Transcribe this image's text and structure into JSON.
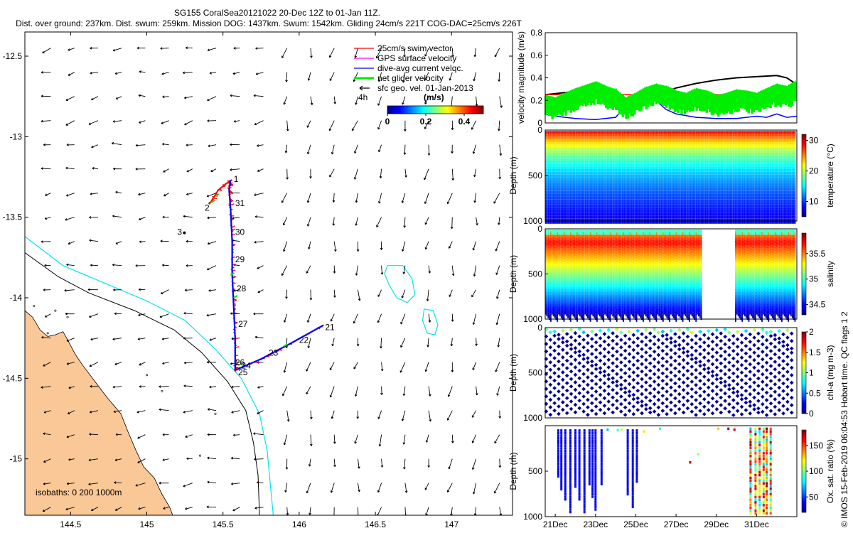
{
  "header": {
    "title": "SG155 CoralSea20121022 20-Dec 12Z to 01-Jan 11Z.",
    "subtitle": "Dist. over ground: 237km. Dist. swum: 259km. Mission DOG: 1437km. Swum: 1542km. Gliding 24cm/s 221T COG-DAC=25cm/s 226T"
  },
  "credit": "© IMOS 15-Feb-2019 06:04:53 Hobart time. QC flags 1  2",
  "colors": {
    "land": "#fac896",
    "isobath200": "#000000",
    "isobath1000": "#00e5ee",
    "swim": "#ff0000",
    "gps": "#ff00ff",
    "dac": "#0000ff",
    "net": "#00ee00",
    "sfc": "#000000"
  },
  "chart_data": [
    {
      "type": "map",
      "xlim": [
        144.2,
        147.4
      ],
      "ylim": [
        -15.35,
        -12.35
      ],
      "x_ticks": [
        144.5,
        145,
        145.5,
        146,
        146.5,
        147
      ],
      "x_tick_labels": [
        "144.5",
        "145",
        "145.5",
        "146",
        "146.5",
        "147"
      ],
      "y_ticks": [
        -12.5,
        -13,
        -13.5,
        -14,
        -14.5,
        -15
      ],
      "y_tick_labels": [
        "-12.5",
        "-13",
        "-13.5",
        "-14",
        "-14.5",
        "-15"
      ],
      "legend": {
        "placement": "top-right",
        "entries": [
          {
            "label": "25cm/s swim vector",
            "color": "#ff0000",
            "marker": "line"
          },
          {
            "label": "GPS surface velocity",
            "color": "#ff00ff",
            "marker": "line"
          },
          {
            "label": "dive-avg current velqc.",
            "color": "#0000ff",
            "marker": "line"
          },
          {
            "label": "net glider velocity",
            "color": "#00ee00",
            "marker": "bold-line"
          },
          {
            "label": "sfc geo. vel. 01-Jan-2013",
            "color": "#000000",
            "marker": "arrow"
          }
        ]
      },
      "colorbar": {
        "label": "(m/s)",
        "ticks": [
          0,
          0.2,
          0.4
        ],
        "tick_labels": [
          "0",
          "0.2",
          "0.4"
        ],
        "range": [
          0,
          0.5
        ],
        "annotation": "4h"
      },
      "isobaths_label": "isobaths: 0   200  1000m",
      "track": {
        "leg1": [
          [
            145.55,
            -13.27
          ],
          [
            145.54,
            -13.33
          ],
          [
            145.55,
            -13.45
          ],
          [
            145.56,
            -13.65
          ],
          [
            145.56,
            -13.85
          ],
          [
            145.57,
            -14.05
          ],
          [
            145.58,
            -14.25
          ],
          [
            145.58,
            -14.42
          ],
          [
            145.58,
            -14.45
          ]
        ],
        "leg2": [
          [
            145.58,
            -14.45
          ],
          [
            145.75,
            -14.38
          ],
          [
            145.95,
            -14.28
          ],
          [
            146.16,
            -14.17
          ]
        ],
        "start_hook": [
          [
            145.55,
            -13.27
          ],
          [
            145.47,
            -13.33
          ],
          [
            145.41,
            -13.42
          ]
        ]
      },
      "day_labels": [
        {
          "text": "1",
          "x": 145.57,
          "y": -13.28
        },
        {
          "text": "2",
          "x": 145.38,
          "y": -13.46
        },
        {
          "text": "3",
          "x": 145.2,
          "y": -13.61
        },
        {
          "text": "31",
          "x": 145.58,
          "y": -13.43
        },
        {
          "text": "30",
          "x": 145.58,
          "y": -13.61
        },
        {
          "text": "29",
          "x": 145.58,
          "y": -13.78
        },
        {
          "text": "28",
          "x": 145.59,
          "y": -13.96
        },
        {
          "text": "27",
          "x": 145.6,
          "y": -14.18
        },
        {
          "text": "26",
          "x": 145.58,
          "y": -14.42
        },
        {
          "text": "24",
          "x": 145.62,
          "y": -14.44
        },
        {
          "text": "25",
          "x": 145.6,
          "y": -14.48
        },
        {
          "text": "23",
          "x": 145.8,
          "y": -14.36
        },
        {
          "text": "22",
          "x": 146.0,
          "y": -14.28
        },
        {
          "text": "21",
          "x": 146.17,
          "y": -14.2
        }
      ],
      "isobath_200": [
        [
          144.2,
          -13.72
        ],
        [
          144.42,
          -13.87
        ],
        [
          144.62,
          -13.97
        ],
        [
          144.92,
          -14.08
        ],
        [
          145.18,
          -14.2
        ],
        [
          145.36,
          -14.34
        ],
        [
          145.53,
          -14.52
        ],
        [
          145.65,
          -14.7
        ],
        [
          145.7,
          -14.9
        ],
        [
          145.73,
          -15.1
        ],
        [
          145.74,
          -15.35
        ]
      ],
      "isobath_1000": [
        [
          144.2,
          -13.62
        ],
        [
          144.45,
          -13.8
        ],
        [
          144.7,
          -13.9
        ],
        [
          145.0,
          -14.02
        ],
        [
          145.25,
          -14.14
        ],
        [
          145.45,
          -14.32
        ],
        [
          145.62,
          -14.5
        ],
        [
          145.74,
          -14.72
        ],
        [
          145.79,
          -14.95
        ],
        [
          145.81,
          -15.15
        ],
        [
          145.83,
          -15.35
        ]
      ],
      "reefs": [
        [
          [
            146.58,
            -13.8
          ],
          [
            146.68,
            -13.8
          ],
          [
            146.74,
            -13.88
          ],
          [
            146.76,
            -13.98
          ],
          [
            146.71,
            -14.03
          ],
          [
            146.64,
            -14.0
          ],
          [
            146.59,
            -13.92
          ],
          [
            146.56,
            -13.85
          ],
          [
            146.58,
            -13.8
          ]
        ],
        [
          [
            146.82,
            -14.07
          ],
          [
            146.88,
            -14.08
          ],
          [
            146.91,
            -14.17
          ],
          [
            146.89,
            -14.23
          ],
          [
            146.84,
            -14.22
          ],
          [
            146.81,
            -14.14
          ],
          [
            146.82,
            -14.07
          ]
        ]
      ],
      "coastline": [
        [
          144.2,
          -14.08
        ],
        [
          144.25,
          -14.12
        ],
        [
          144.3,
          -14.2
        ],
        [
          144.35,
          -14.24
        ],
        [
          144.4,
          -14.23
        ],
        [
          144.45,
          -14.21
        ],
        [
          144.48,
          -14.26
        ],
        [
          144.53,
          -14.35
        ],
        [
          144.58,
          -14.42
        ],
        [
          144.66,
          -14.52
        ],
        [
          144.74,
          -14.62
        ],
        [
          144.83,
          -14.72
        ],
        [
          144.88,
          -14.84
        ],
        [
          144.93,
          -14.95
        ],
        [
          144.98,
          -15.05
        ],
        [
          145.05,
          -15.12
        ],
        [
          145.1,
          -15.22
        ],
        [
          145.15,
          -15.3
        ],
        [
          145.17,
          -15.35
        ],
        [
          144.2,
          -15.35
        ]
      ]
    },
    {
      "type": "line",
      "ylabel": "velocity magnitude (m/s)",
      "ylim": [
        0,
        0.8
      ],
      "y_ticks": [
        0,
        0.2,
        0.4,
        0.6,
        0.8
      ],
      "y_tick_labels": [
        "0",
        "0.2",
        "0.4",
        "0.6",
        "0.8"
      ],
      "xlim": [
        20.5,
        33.0
      ],
      "series": [
        {
          "color": "#000000",
          "x": [
            20.5,
            21.0,
            22.0,
            22.8,
            23.5,
            24.0,
            24.5,
            25.0,
            25.5,
            26.0,
            27.0,
            28.0,
            29.0,
            30.0,
            31.0,
            32.0,
            32.5,
            33.0
          ],
          "values": [
            0.25,
            0.26,
            0.28,
            0.29,
            0.26,
            0.23,
            0.2,
            0.19,
            0.21,
            0.25,
            0.31,
            0.35,
            0.38,
            0.4,
            0.41,
            0.42,
            0.4,
            0.34
          ]
        },
        {
          "color": "#0000ff",
          "x": [
            20.5,
            21.0,
            22.0,
            23.0,
            24.0,
            24.5,
            25.0,
            25.3,
            25.6,
            26.0,
            26.5,
            27.0,
            28.0,
            29.0,
            30.0,
            31.0,
            31.5,
            32.0,
            32.5,
            33.0
          ],
          "values": [
            0.08,
            0.06,
            0.04,
            0.03,
            0.05,
            0.15,
            0.25,
            0.2,
            0.26,
            0.2,
            0.12,
            0.08,
            0.05,
            0.04,
            0.04,
            0.06,
            0.05,
            0.08,
            0.05,
            0.06
          ]
        },
        {
          "color": "#ff0000",
          "x": [
            20.5,
            33.0
          ],
          "values": [
            0.25,
            0.25
          ]
        },
        {
          "color": "#00ee00",
          "x": [
            20.5,
            21.0,
            21.5,
            22.0,
            22.5,
            23.0,
            23.5,
            24.0,
            24.5,
            25.0,
            25.5,
            26.0,
            26.5,
            27.0,
            27.5,
            28.0,
            28.5,
            29.0,
            29.5,
            30.0,
            30.5,
            31.0,
            31.5,
            32.0,
            32.5,
            33.0
          ],
          "values": [
            0.2,
            0.18,
            0.22,
            0.26,
            0.29,
            0.32,
            0.28,
            0.25,
            0.18,
            0.22,
            0.27,
            0.3,
            0.28,
            0.24,
            0.22,
            0.26,
            0.24,
            0.2,
            0.22,
            0.25,
            0.24,
            0.22,
            0.26,
            0.3,
            0.28,
            0.33
          ]
        }
      ]
    },
    {
      "type": "heatmap",
      "ylabel": "Depth (m)",
      "clabel": "temperature (°C)",
      "ylim": [
        1000,
        0
      ],
      "y_ticks": [
        0,
        500,
        1000
      ],
      "y_tick_labels": [
        "0",
        "500",
        "1000"
      ],
      "clim": [
        5,
        32
      ],
      "c_ticks": [
        10,
        20,
        30
      ],
      "c_tick_labels": [
        "10",
        "20",
        "30"
      ],
      "xlim": [
        20.5,
        33.0
      ],
      "gaps": []
    },
    {
      "type": "heatmap",
      "ylabel": "Depth (m)",
      "clabel": "salinity",
      "ylim": [
        1000,
        0
      ],
      "y_ticks": [
        0,
        500,
        1000
      ],
      "y_tick_labels": [
        "0",
        "500",
        "1000"
      ],
      "clim": [
        34.3,
        35.9
      ],
      "c_ticks": [
        34.5,
        35,
        35.5
      ],
      "c_tick_labels": [
        "34.5",
        "35",
        "35.5"
      ],
      "xlim": [
        20.5,
        33.0
      ],
      "gaps": [
        [
          28.3,
          29.9
        ]
      ]
    },
    {
      "type": "scatter",
      "ylabel": "Depth (m)",
      "clabel": "chl-a (mg m-3)",
      "ylim": [
        1000,
        0
      ],
      "y_ticks": [
        0,
        500,
        1000
      ],
      "y_tick_labels": [
        "0",
        "500",
        "1000"
      ],
      "clim": [
        0,
        2
      ],
      "c_ticks": [
        0,
        0.5,
        1,
        1.5,
        2
      ],
      "c_tick_labels": [
        "0",
        "0.5",
        "1",
        "1.5",
        "2"
      ],
      "xlim": [
        20.5,
        33.0
      ]
    },
    {
      "type": "scatter",
      "ylabel": "Depth (m)",
      "clabel": "Ox. sat. ratio (%)",
      "ylim": [
        1000,
        0
      ],
      "y_ticks": [
        500,
        1000
      ],
      "y_tick_labels": [
        "500",
        "1000"
      ],
      "clim": [
        20,
        180
      ],
      "c_ticks": [
        50,
        100,
        150
      ],
      "c_tick_labels": [
        "50",
        "100",
        "150"
      ],
      "xlim": [
        20.5,
        33.0
      ],
      "x_ticks": [
        21,
        23,
        25,
        27,
        29,
        31
      ],
      "x_tick_labels": [
        "21Dec",
        "23Dec",
        "25Dec",
        "27Dec",
        "29Dec",
        "31Dec"
      ]
    }
  ]
}
